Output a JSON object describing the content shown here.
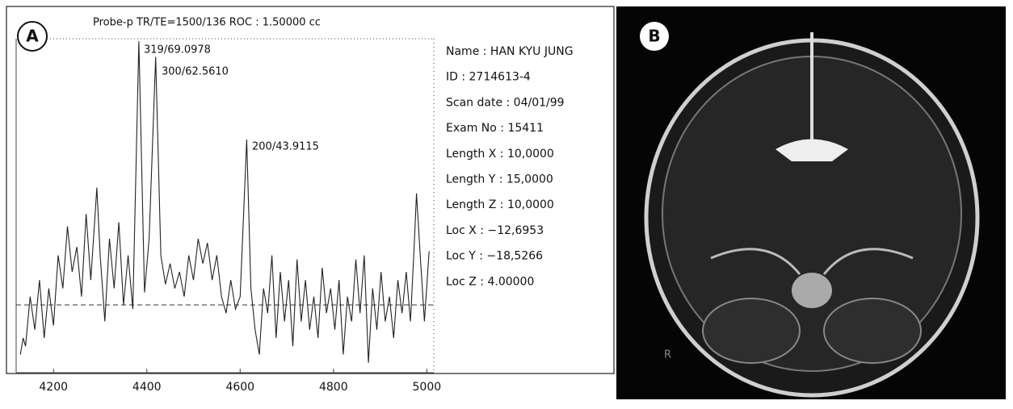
{
  "chart_data": {
    "type": "line",
    "panel_label": "A",
    "title": "Probe-p TR/TE=1500/136 ROC : 1.50000 cc",
    "x": [
      4129,
      4135,
      4140,
      4150,
      4160,
      4170,
      4180,
      4190,
      4200,
      4210,
      4220,
      4230,
      4240,
      4250,
      4260,
      4270,
      4280,
      4293,
      4300,
      4310,
      4320,
      4330,
      4340,
      4350,
      4360,
      4370,
      4383,
      4395,
      4405,
      4419,
      4430,
      4440,
      4450,
      4460,
      4470,
      4480,
      4490,
      4500,
      4510,
      4520,
      4530,
      4540,
      4550,
      4560,
      4570,
      4580,
      4590,
      4600,
      4614,
      4623,
      4632,
      4641,
      4650,
      4659,
      4668,
      4677,
      4686,
      4695,
      4704,
      4713,
      4722,
      4731,
      4740,
      4749,
      4758,
      4767,
      4776,
      4785,
      4794,
      4803,
      4812,
      4821,
      4830,
      4839,
      4848,
      4857,
      4866,
      4875,
      4884,
      4893,
      4902,
      4911,
      4920,
      4929,
      4938,
      4947,
      4956,
      4965,
      4972,
      4978,
      4986,
      4995,
      5005
    ],
    "values": [
      -60,
      -40,
      -50,
      10,
      -30,
      30,
      -40,
      20,
      -25,
      60,
      20,
      95,
      40,
      70,
      10,
      110,
      30,
      142,
      60,
      -20,
      80,
      20,
      100,
      0,
      60,
      -5,
      319,
      15,
      80,
      300,
      60,
      25,
      50,
      20,
      40,
      10,
      60,
      30,
      80,
      50,
      75,
      30,
      60,
      10,
      -10,
      30,
      -5,
      10,
      200,
      20,
      -30,
      -60,
      20,
      -10,
      60,
      -40,
      40,
      -20,
      30,
      -50,
      55,
      -20,
      30,
      -30,
      10,
      -40,
      45,
      -10,
      20,
      -30,
      30,
      -60,
      10,
      -20,
      55,
      -10,
      60,
      -70,
      20,
      -30,
      40,
      -20,
      10,
      -40,
      30,
      -10,
      40,
      -20,
      60,
      135,
      60,
      -20,
      65
    ],
    "color": "#222222",
    "xlim": [
      4120,
      5015
    ],
    "ylim": [
      -82,
      322
    ],
    "xticks": [
      4200,
      4400,
      4600,
      4800,
      5000
    ],
    "hline": 0,
    "annotations": [
      "319/69.0978",
      "300/62.5610",
      "200/43.9115"
    ],
    "info": [
      "Name : HAN KYU JUNG",
      "ID : 2714613-4",
      "Scan date : 04/01/99",
      "Exam No : 15411",
      "Length X : 10,0000",
      "Length Y : 15,0000",
      "Length Z : 10,0000",
      "Loc X : −12,6953",
      "Loc Y : −18,5266",
      "Loc Z : 4.00000"
    ]
  },
  "image_panel": {
    "label": "B",
    "marker": "R"
  }
}
